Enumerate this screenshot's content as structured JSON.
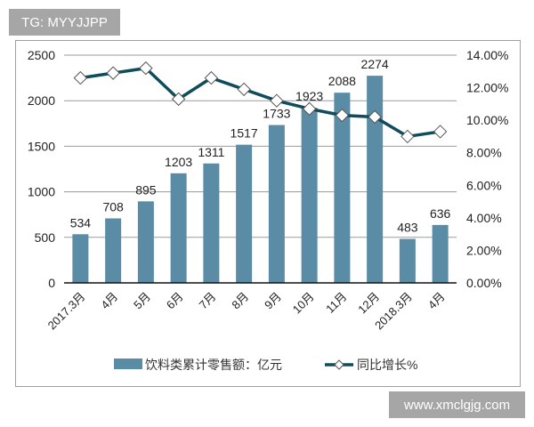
{
  "watermarks": {
    "top_left": "TG: MYYJJPP",
    "bottom_right": "www.xmclgjg.com"
  },
  "colors": {
    "bar": "#5b8ca5",
    "line": "#0f4c5c",
    "grid": "#9a9a9a",
    "watermark_bg": "#a6a6a6"
  },
  "chart_data": {
    "type": "bar+line",
    "title": "",
    "categories": [
      "2017.3月",
      "4月",
      "5月",
      "6月",
      "7月",
      "8月",
      "9月",
      "10月",
      "11月",
      "12月",
      "2018.3月",
      "4月"
    ],
    "series": [
      {
        "name": "饮料类累计零售额：亿元",
        "type": "bar",
        "axis": "left",
        "values": [
          534,
          708,
          895,
          1203,
          1311,
          1517,
          1733,
          1923,
          2088,
          2274,
          483,
          636
        ]
      },
      {
        "name": "同比增长%",
        "type": "line",
        "axis": "right",
        "values": [
          12.6,
          12.9,
          13.2,
          11.3,
          12.6,
          11.9,
          11.2,
          10.7,
          10.3,
          10.2,
          9.0,
          9.3
        ]
      }
    ],
    "left_axis": {
      "ylim": [
        0,
        2500
      ],
      "ticks": [
        "0",
        "500",
        "1000",
        "1500",
        "2000",
        "2500"
      ]
    },
    "right_axis": {
      "ylim": [
        0,
        14
      ],
      "ticks": [
        "0.00%",
        "2.00%",
        "4.00%",
        "6.00%",
        "8.00%",
        "10.00%",
        "12.00%",
        "14.00%"
      ]
    },
    "grid": true,
    "legend_position": "bottom",
    "data_labels": [
      "534",
      "708",
      "895",
      "1203",
      "1311",
      "1517",
      "1733",
      "1923",
      "2088",
      "2274",
      "483",
      "636"
    ]
  },
  "legend": {
    "bar_label": "饮料类累计零售额：亿元",
    "line_label": "同比增长%"
  }
}
